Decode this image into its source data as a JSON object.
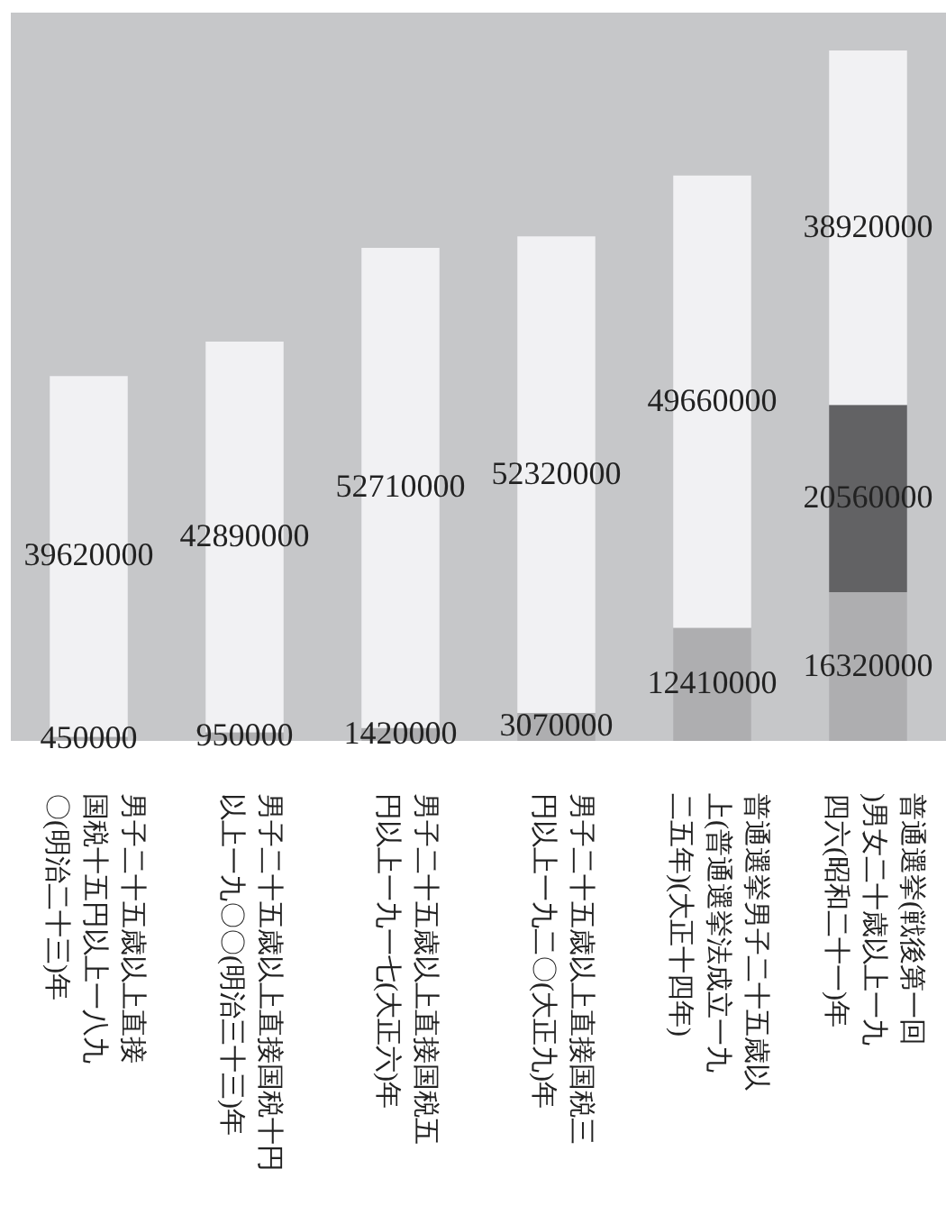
{
  "chart_data": {
    "type": "bar",
    "stacked": true,
    "data_labels": true,
    "categories": [
      "男子二十五歳以上直接国税十五円以上一八九〇(明治二十三)年",
      "男子二十五歳以上直接国税十円以上一九〇〇(明治三十三)年",
      "男子二十五歳以上直接国税五円以上一九一七(大正六)年",
      "男子二十五歳以上直接国税三円以上一九二〇(大正九)年",
      "普通選挙男子二十五歳以上(普通選挙法成立一九二五年)(大正十四年)",
      "普通選挙(戦後第一回)男女二十歳以上一九四六(昭和二十一)年"
    ],
    "series": [
      {
        "color": "#aeaeb0",
        "values": [
          450000,
          950000,
          1420000,
          3070000,
          12410000,
          16320000
        ]
      },
      {
        "color": "#626264",
        "values": [
          null,
          null,
          null,
          null,
          null,
          20560000
        ]
      },
      {
        "color": "#f1f1f3",
        "values": [
          39620000,
          42890000,
          52710000,
          52320000,
          49660000,
          38920000
        ]
      }
    ]
  }
}
